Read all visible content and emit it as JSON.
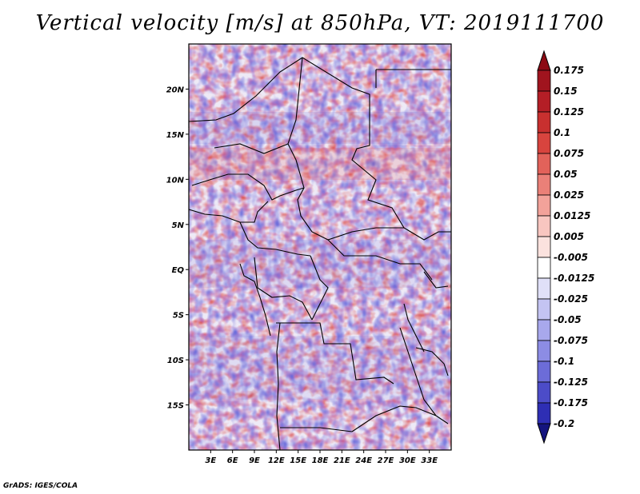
{
  "title": "Vertical velocity [m/s] at 850hPa, VT: 2019111700",
  "credit": "GrADS: IGES/COLA",
  "map": {
    "lon_range": [
      0,
      36
    ],
    "lat_range": [
      -20,
      25
    ],
    "lat_ticks": [
      {
        "value": 20,
        "label": "20N"
      },
      {
        "value": 15,
        "label": "15N"
      },
      {
        "value": 10,
        "label": "10N"
      },
      {
        "value": 5,
        "label": "5N"
      },
      {
        "value": 0,
        "label": "EQ"
      },
      {
        "value": -5,
        "label": "5S"
      },
      {
        "value": -10,
        "label": "10S"
      },
      {
        "value": -15,
        "label": "15S"
      }
    ],
    "lon_ticks": [
      {
        "value": 3,
        "label": "3E"
      },
      {
        "value": 6,
        "label": "6E"
      },
      {
        "value": 9,
        "label": "9E"
      },
      {
        "value": 12,
        "label": "12E"
      },
      {
        "value": 15,
        "label": "15E"
      },
      {
        "value": 18,
        "label": "18E"
      },
      {
        "value": 21,
        "label": "21E"
      },
      {
        "value": 24,
        "label": "24E"
      },
      {
        "value": 27,
        "label": "27E"
      },
      {
        "value": 30,
        "label": "30E"
      },
      {
        "value": 33,
        "label": "33E"
      }
    ]
  },
  "colorbar": {
    "levels": [
      {
        "label": "0.175",
        "color": "#a0141e"
      },
      {
        "label": "0.15",
        "color": "#b41e26"
      },
      {
        "label": "0.125",
        "color": "#c8302f"
      },
      {
        "label": "0.1",
        "color": "#d8443e"
      },
      {
        "label": "0.075",
        "color": "#e2625a"
      },
      {
        "label": "0.05",
        "color": "#ea8078"
      },
      {
        "label": "0.025",
        "color": "#f2a29a"
      },
      {
        "label": "0.0125",
        "color": "#f8c6c0"
      },
      {
        "label": "0.005",
        "color": "#fbe2de"
      },
      {
        "label": "-0.005",
        "color": "#ffffff"
      },
      {
        "label": "-0.0125",
        "color": "#e0e0f8"
      },
      {
        "label": "-0.025",
        "color": "#c4c4f2"
      },
      {
        "label": "-0.05",
        "color": "#a8a8ec"
      },
      {
        "label": "-0.075",
        "color": "#8c8ce4"
      },
      {
        "label": "-0.1",
        "color": "#6c6cd8"
      },
      {
        "label": "-0.125",
        "color": "#4c4cc8"
      },
      {
        "label": "-0.175",
        "color": "#2e2eb4"
      },
      {
        "label": "-0.2",
        "color": "#1a1a9a"
      }
    ],
    "top_arrow_color": "#8c0a14",
    "bottom_arrow_color": "#14147e"
  }
}
